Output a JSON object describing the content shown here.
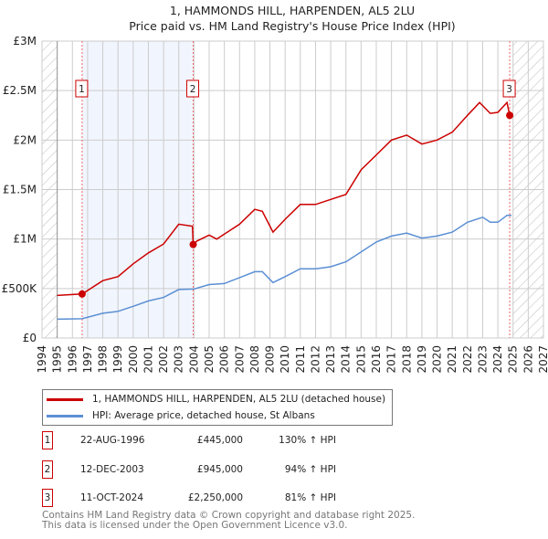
{
  "chart_data": {
    "type": "line",
    "title": "1, HAMMONDS HILL, HARPENDEN, AL5 2LU",
    "subtitle": "Price paid vs. HM Land Registry's House Price Index (HPI)",
    "xlim": [
      1994,
      2027
    ],
    "ylim": [
      0,
      3000000
    ],
    "x_ticks": [
      "1994",
      "1995",
      "1996",
      "1997",
      "1998",
      "1999",
      "2000",
      "2001",
      "2002",
      "2003",
      "2004",
      "2005",
      "2006",
      "2007",
      "2008",
      "2009",
      "2010",
      "2011",
      "2012",
      "2013",
      "2014",
      "2015",
      "2016",
      "2017",
      "2018",
      "2019",
      "2020",
      "2021",
      "2022",
      "2023",
      "2024",
      "2025",
      "2026",
      "2027"
    ],
    "y_ticks": [
      {
        "v": 0,
        "label": "£0"
      },
      {
        "v": 500000,
        "label": "£500K"
      },
      {
        "v": 1000000,
        "label": "£1M"
      },
      {
        "v": 1500000,
        "label": "£1.5M"
      },
      {
        "v": 2000000,
        "label": "£2M"
      },
      {
        "v": 2500000,
        "label": "£2.5M"
      },
      {
        "v": 3000000,
        "label": "£3M"
      }
    ],
    "grid": true,
    "series": [
      {
        "name": "1, HAMMONDS HILL, HARPENDEN, AL5 2LU (detached house)",
        "color": "#cc0000",
        "x": [
          1995,
          1996.64,
          1997,
          1998,
          1999,
          2000,
          2001,
          2002,
          2003,
          2003.9,
          2003.95,
          2004.2,
          2005,
          2005.5,
          2006,
          2007,
          2008,
          2008.5,
          2009.2,
          2010,
          2011,
          2012,
          2013,
          2014,
          2015,
          2016,
          2017,
          2018,
          2019,
          2020,
          2021,
          2022,
          2022.8,
          2023.5,
          2024,
          2024.6,
          2024.78,
          2024.9
        ],
        "y": [
          430000,
          445000,
          480000,
          580000,
          620000,
          750000,
          860000,
          950000,
          1150000,
          1130000,
          945000,
          980000,
          1040000,
          1000000,
          1050000,
          1150000,
          1300000,
          1280000,
          1070000,
          1200000,
          1350000,
          1350000,
          1400000,
          1450000,
          1700000,
          1850000,
          2000000,
          2050000,
          1960000,
          2000000,
          2080000,
          2250000,
          2380000,
          2270000,
          2280000,
          2380000,
          2250000,
          2260000
        ]
      },
      {
        "name": "HPI: Average price, detached house, St Albans",
        "color": "#5b8fd4",
        "x": [
          1995,
          1996.64,
          1998,
          1999,
          2000,
          2001,
          2002,
          2003,
          2004,
          2005,
          2006,
          2007,
          2008,
          2008.5,
          2009.2,
          2010,
          2011,
          2012,
          2013,
          2014,
          2015,
          2016,
          2017,
          2018,
          2019,
          2020,
          2021,
          2022,
          2023,
          2023.5,
          2024,
          2024.6,
          2024.9
        ],
        "y": [
          190000,
          195000,
          250000,
          270000,
          320000,
          375000,
          410000,
          490000,
          495000,
          540000,
          550000,
          610000,
          670000,
          670000,
          560000,
          620000,
          700000,
          700000,
          720000,
          770000,
          870000,
          970000,
          1030000,
          1060000,
          1010000,
          1030000,
          1070000,
          1170000,
          1220000,
          1170000,
          1170000,
          1240000,
          1240000
        ]
      }
    ],
    "sales": [
      {
        "id": "1",
        "x": 1996.64,
        "price": 445000,
        "date": "22-AUG-1996",
        "price_label": "£445,000",
        "hpi": "130% ↑ HPI"
      },
      {
        "id": "2",
        "x": 2003.95,
        "price": 945000,
        "date": "12-DEC-2003",
        "price_label": "£945,000",
        "hpi": "94% ↑ HPI"
      },
      {
        "id": "3",
        "x": 2024.78,
        "price": 2250000,
        "date": "11-OCT-2024",
        "price_label": "£2,250,000",
        "hpi": "81% ↑ HPI"
      }
    ],
    "legend_placement": "below"
  },
  "footer": {
    "line1": "Contains HM Land Registry data © Crown copyright and database right 2025.",
    "line2": "This data is licensed under the Open Government Licence v3.0."
  }
}
